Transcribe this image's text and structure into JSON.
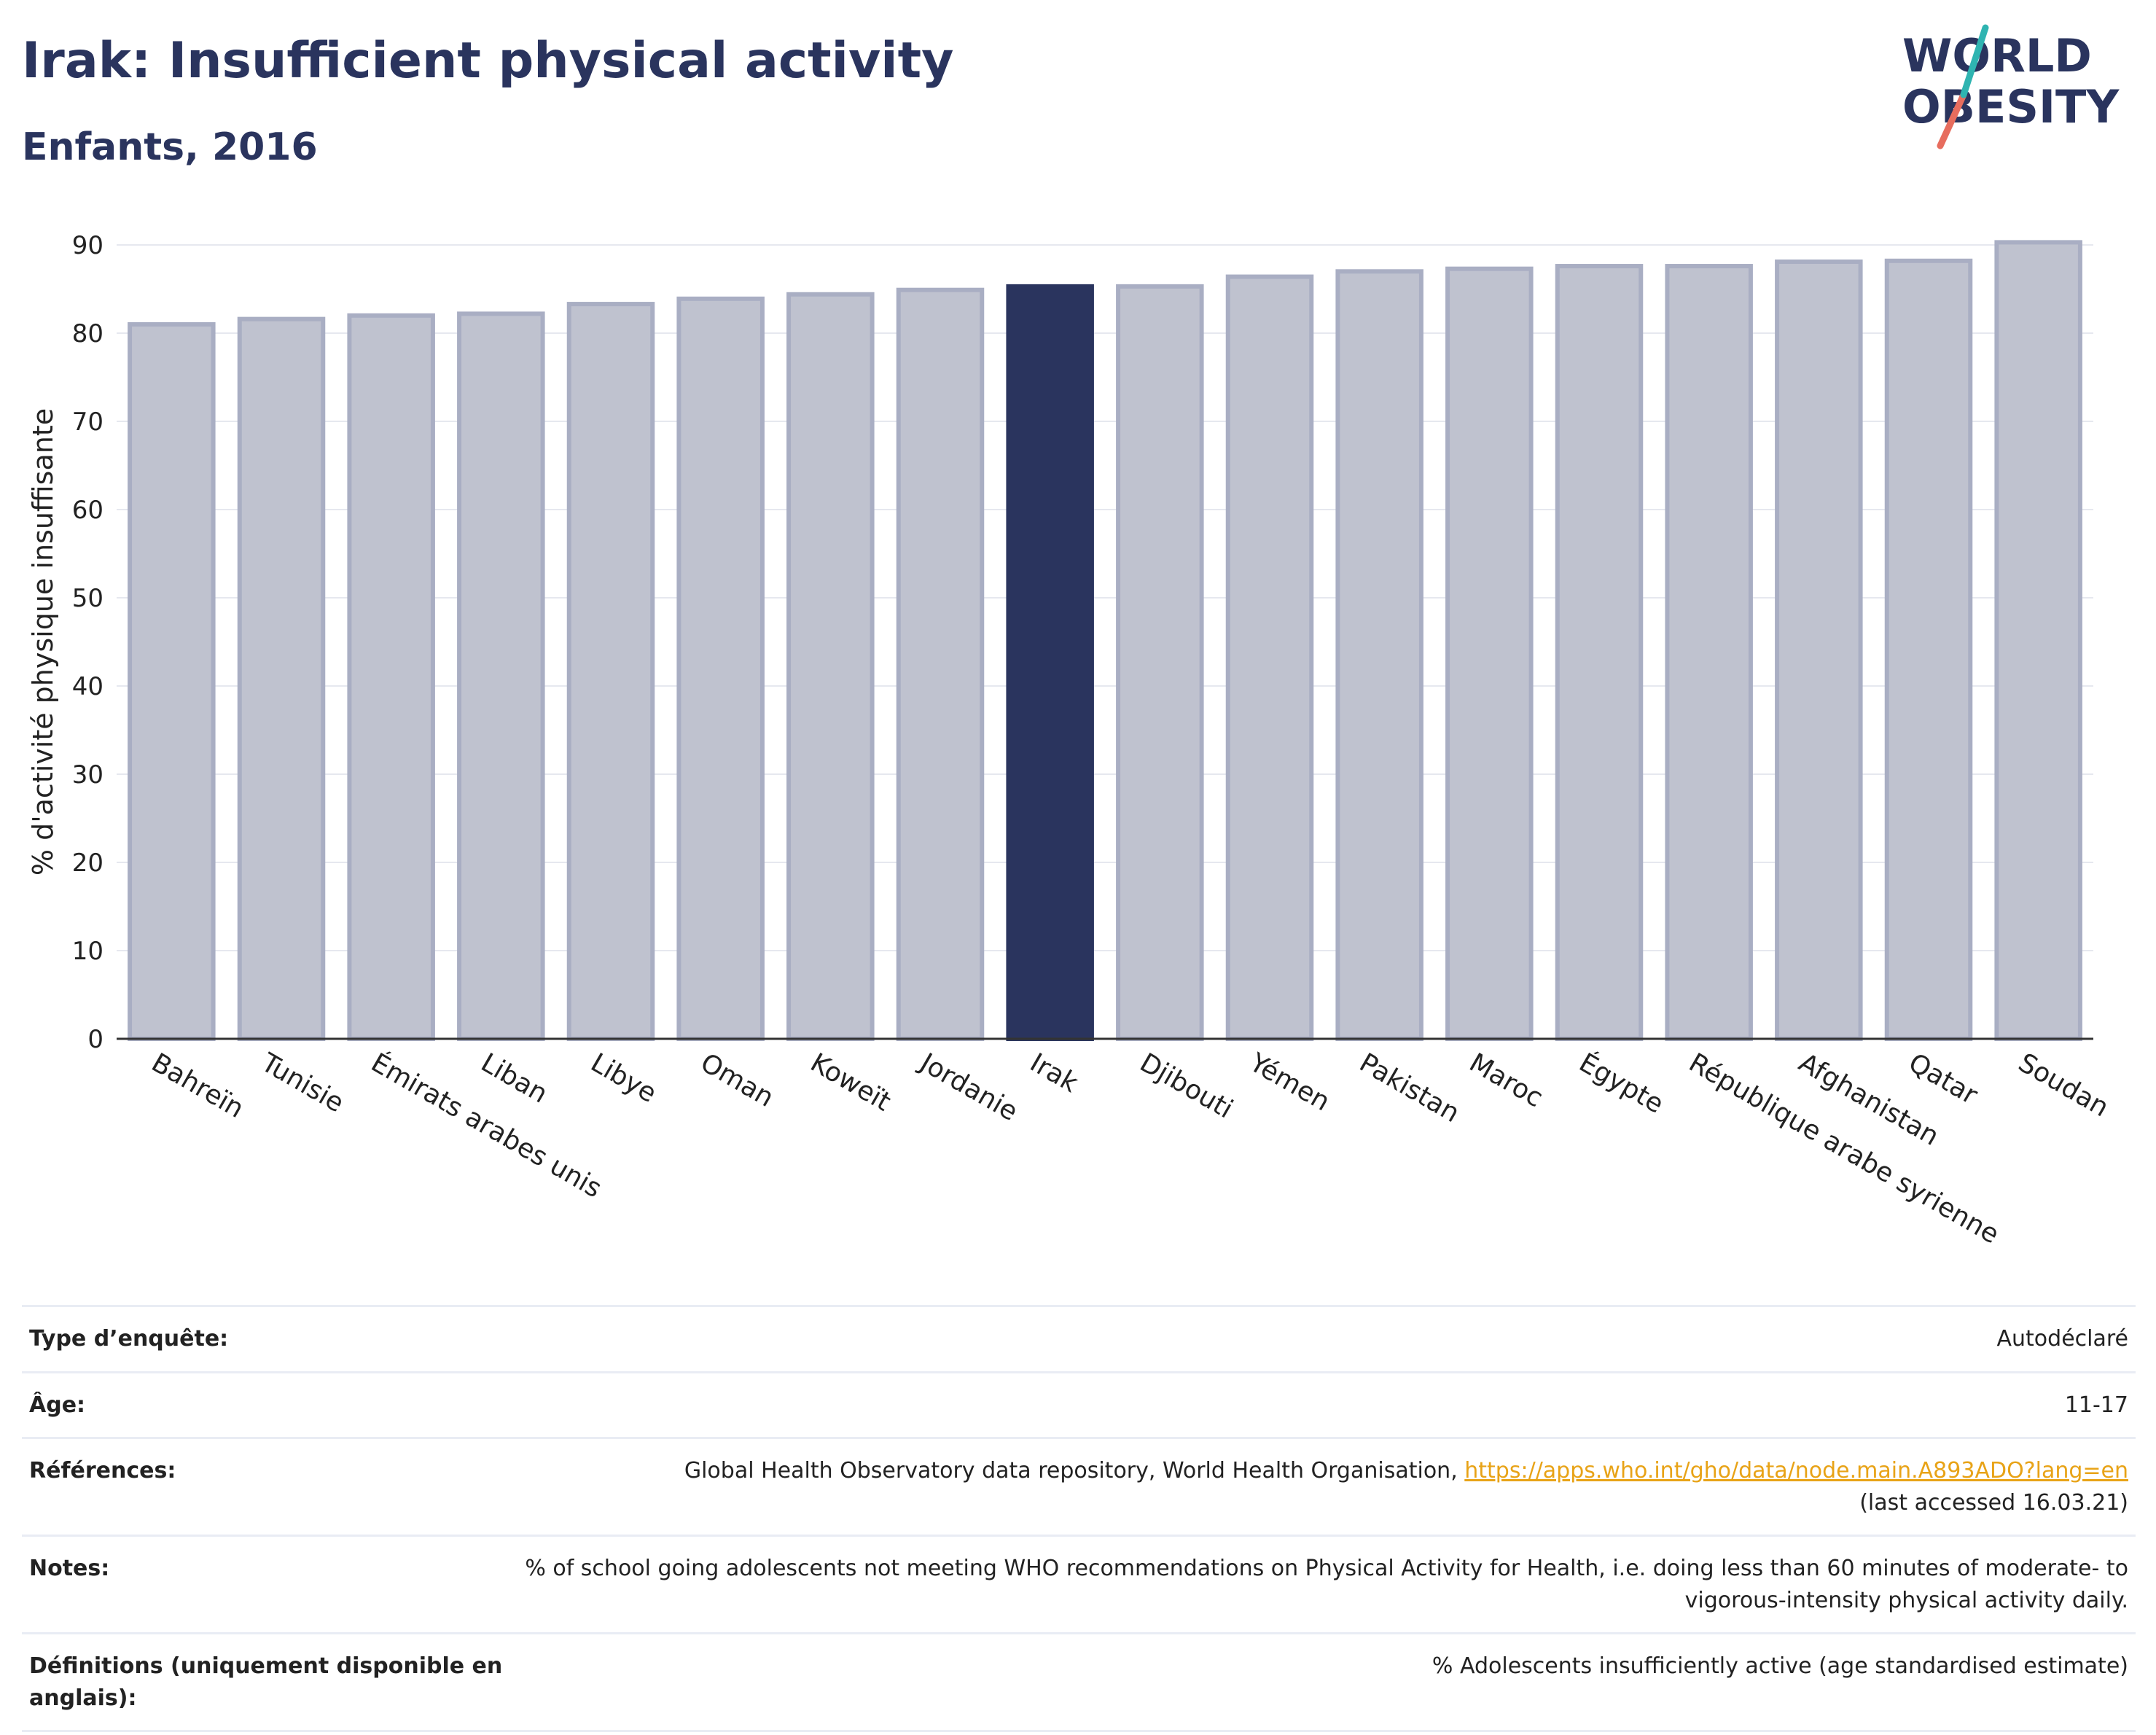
{
  "header": {
    "title": "Irak: Insufficient physical activity",
    "subtitle": "Enfants, 2016"
  },
  "logo": {
    "line1": "WORLD",
    "line2": "OBESITY"
  },
  "colors": {
    "highlight_bar": "#2a345e",
    "other_bar_fill": "#bfc2cf",
    "other_bar_stroke": "#a9aec3",
    "grid": "#e6e8ef",
    "axis": "#333333",
    "link": "#e8a317"
  },
  "chart_data": {
    "type": "bar",
    "ylabel": "% d'activité physique insuffisante",
    "ylim": [
      0,
      90
    ],
    "yticks": [
      0,
      10,
      20,
      30,
      40,
      50,
      60,
      70,
      80,
      90
    ],
    "grid": true,
    "highlight": "Irak",
    "categories": [
      "Bahreïn",
      "Tunisie",
      "Émirats arabes unis",
      "Liban",
      "Libye",
      "Oman",
      "Koweït",
      "Jordanie",
      "Irak",
      "Djibouti",
      "Yémen",
      "Pakistan",
      "Maroc",
      "Égypte",
      "République arabe syrienne",
      "Afghanistan",
      "Qatar",
      "Soudan"
    ],
    "values": [
      81.0,
      81.6,
      82.0,
      82.2,
      83.3,
      83.9,
      84.4,
      84.9,
      85.3,
      85.3,
      86.4,
      87.0,
      87.3,
      87.6,
      87.6,
      88.1,
      88.2,
      90.3
    ]
  },
  "info_table": [
    {
      "key": "Type d’enquête:",
      "value": "Autodéclaré"
    },
    {
      "key": "Âge:",
      "value": "11-17"
    },
    {
      "key": "Références:",
      "value": "Global Health Observatory data repository, World Health Organisation, ",
      "link": "https://apps.who.int/gho/data/node.main.A893ADO?lang=en",
      "suffix": "(last accessed 16.03.21)"
    },
    {
      "key": "Notes:",
      "value": "% of school going adolescents not meeting WHO recommendations on Physical Activity for Health, i.e. doing less than 60 minutes of moderate- to vigorous-intensity physical activity daily."
    },
    {
      "key": "Définitions (uniquement disponible en anglais):",
      "value": "% Adolescents insufficiently active (age standardised estimate)"
    }
  ]
}
